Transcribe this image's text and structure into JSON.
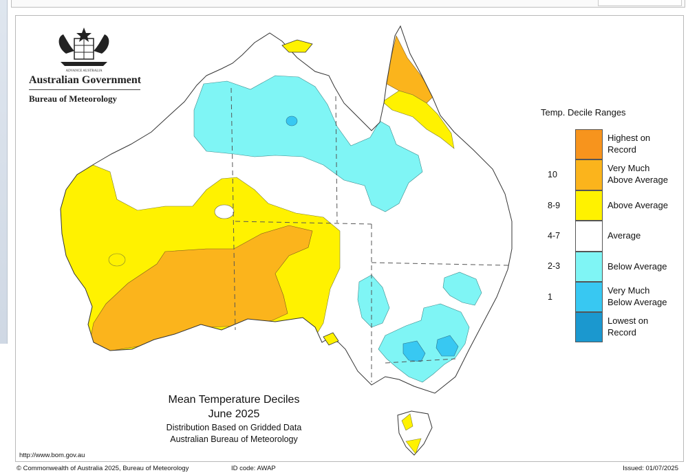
{
  "header": {
    "agency": "Australian Government",
    "department": "Bureau of Meteorology"
  },
  "title": {
    "main": "Mean Temperature Deciles",
    "date": "June 2025",
    "sub1": "Distribution Based on Gridded Data",
    "sub2": "Australian Bureau of Meteorology"
  },
  "legend": {
    "title": "Temp. Decile Ranges",
    "items": [
      {
        "label1": "Highest on",
        "label2": "Record",
        "color": "#f7941d"
      },
      {
        "label1": "Very Much",
        "label2": "Above Average",
        "color": "#fbb41c"
      },
      {
        "label1": "Above Average",
        "label2": "",
        "color": "#fff200"
      },
      {
        "label1": "Average",
        "label2": "",
        "color": "#ffffff"
      },
      {
        "label1": "Below Average",
        "label2": "",
        "color": "#7ff5f5"
      },
      {
        "label1": "Very Much",
        "label2": "Below Average",
        "color": "#38c8f2"
      },
      {
        "label1": "Lowest on",
        "label2": "Record",
        "color": "#1b98cf"
      }
    ],
    "numbers": [
      "10",
      "8-9",
      "4-7",
      "2-3",
      "1"
    ]
  },
  "footer": {
    "url": "http://www.bom.gov.au",
    "copyright": "© Commonwealth of Australia 2025, Bureau of Meteorology",
    "id_code": "ID code: AWAP",
    "issued": "Issued: 01/07/2025"
  },
  "colors": {
    "very_much_above": "#fbb41c",
    "above": "#fff200",
    "below": "#7ff5f5",
    "very_much_below": "#38c8f2",
    "outline": "#333333"
  }
}
